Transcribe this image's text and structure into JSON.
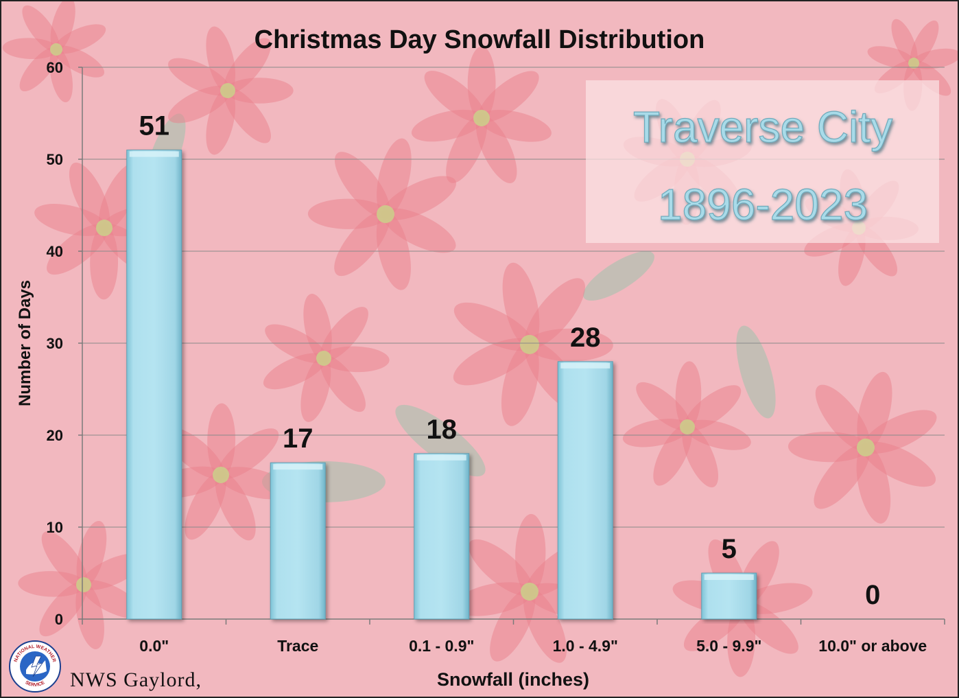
{
  "chart_data": {
    "type": "bar",
    "title": "Christmas Day Snowfall Distribution",
    "xlabel": "Snowfall (inches)",
    "ylabel": "Number of Days",
    "categories": [
      "0.0\"",
      "Trace",
      "0.1 - 0.9\"",
      "1.0 - 4.9\"",
      "5.0 - 9.9\"",
      "10.0\" or above"
    ],
    "values": [
      51,
      17,
      18,
      28,
      5,
      0
    ],
    "data_labels": [
      "51",
      "17",
      "18",
      "28",
      "5",
      "0"
    ],
    "ylim": [
      0,
      60
    ],
    "yticks": [
      "0",
      "10",
      "20",
      "30",
      "40",
      "50",
      "60"
    ],
    "grid": true,
    "bar_color": "#a9dbe9",
    "annotation": {
      "line1": "Traverse City",
      "line2": "1896-2023"
    }
  },
  "footer": {
    "nws_text": "NWS Gaylord,",
    "logo_top_text": "NATIONAL WEATHER",
    "logo_bottom_text": "SERVICE"
  },
  "colors": {
    "background": "#f2b8bf",
    "petal": "#e9808b",
    "leaf": "#9fc2ad",
    "annotation_text": "#a9dbe9"
  }
}
